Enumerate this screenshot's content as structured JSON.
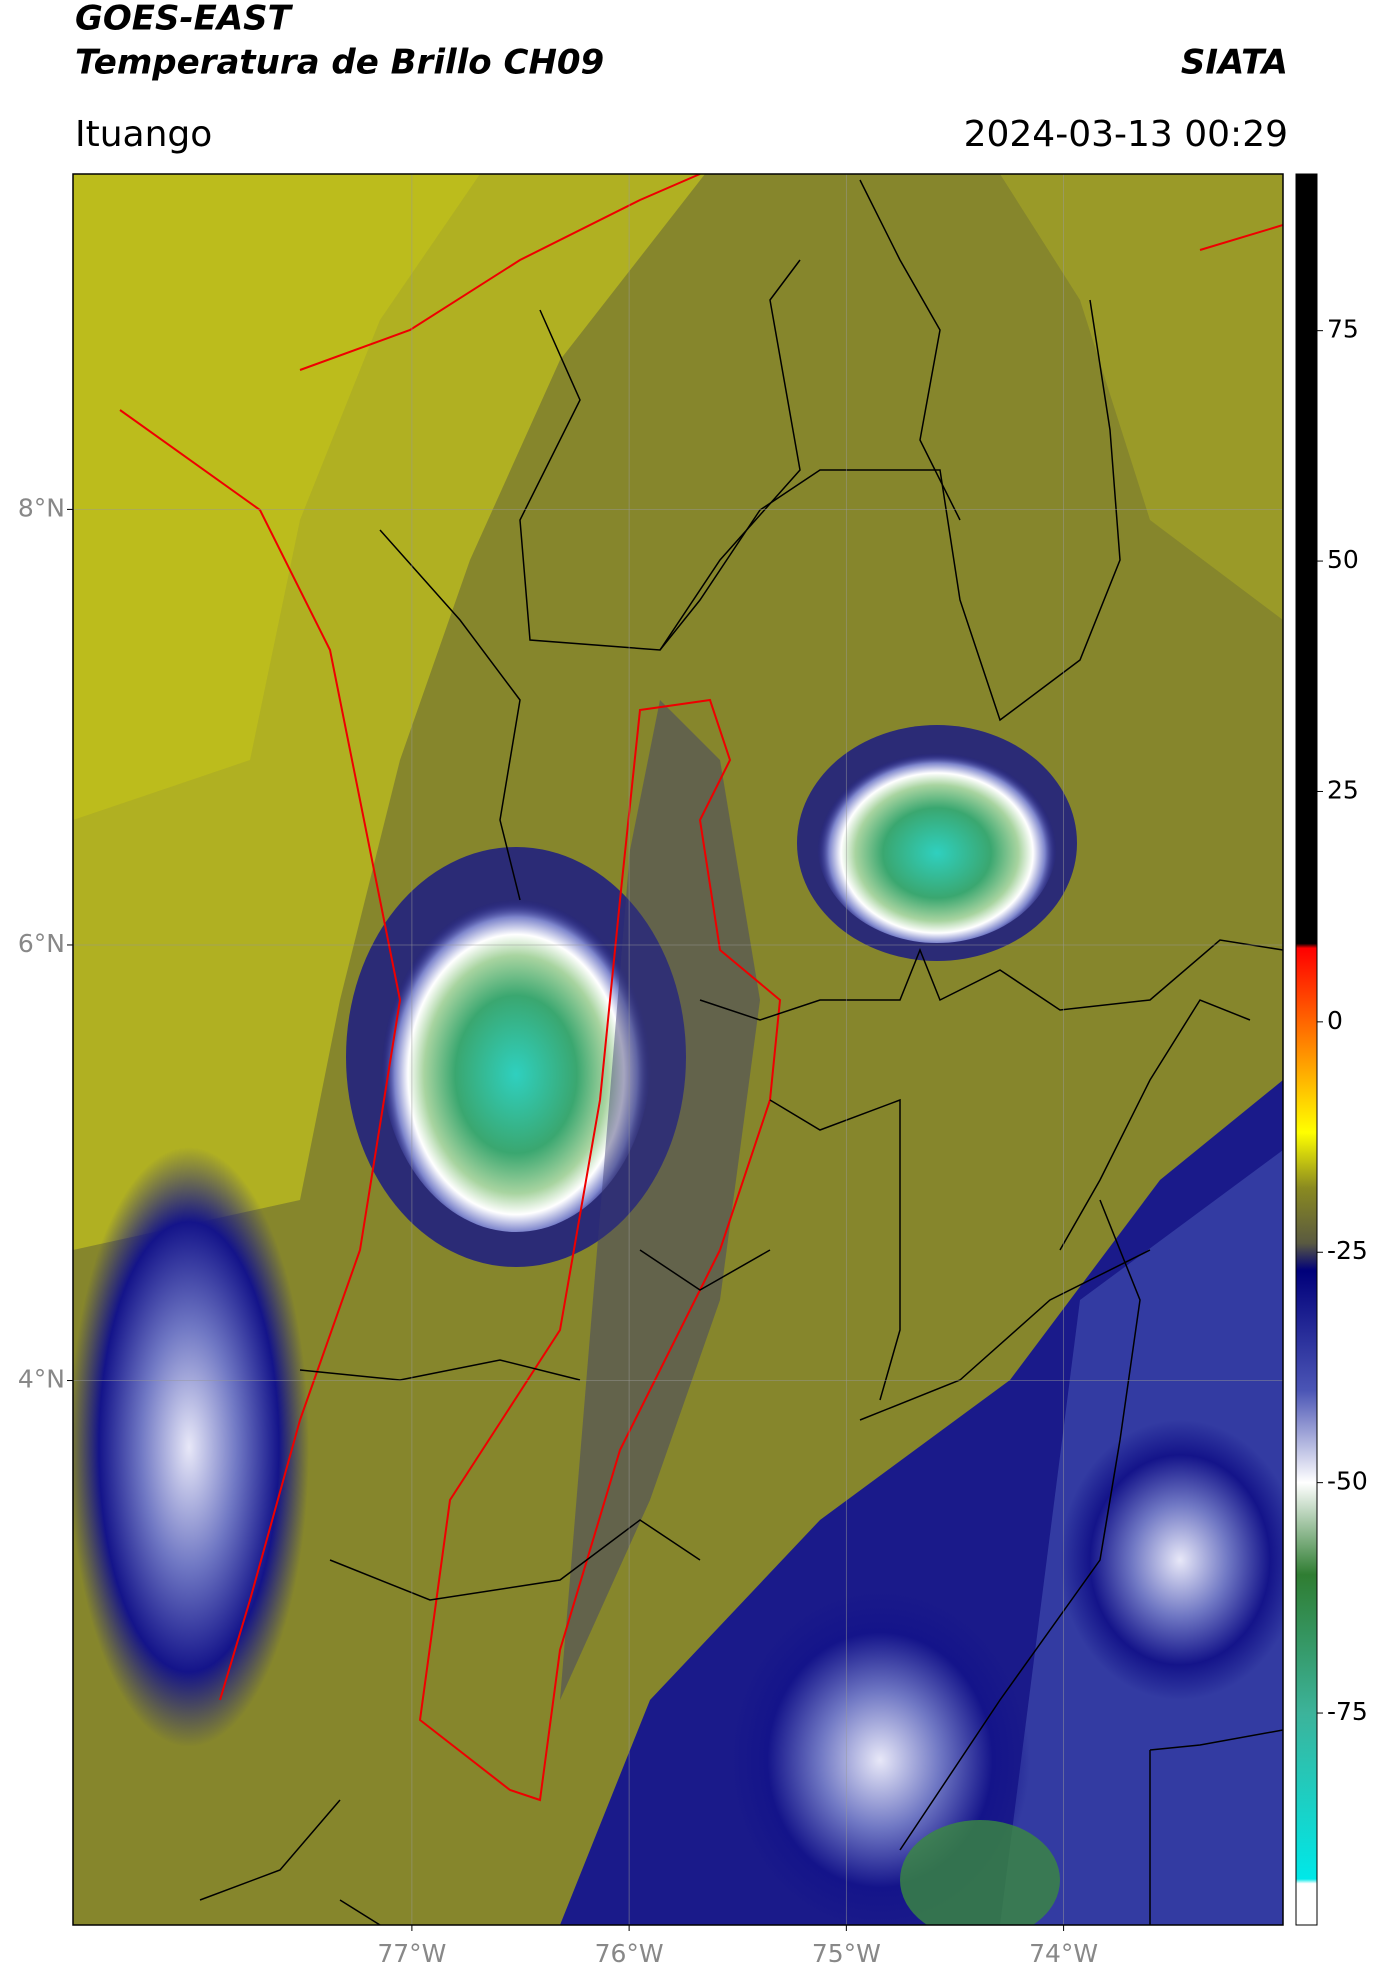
{
  "header": {
    "title": "GOES-EAST",
    "subtitle": "Temperatura de Brillo CH09",
    "org": "SIATA",
    "location": "Ituango",
    "datetime": "2024-03-13 00:29"
  },
  "map": {
    "xlim": [
      -78.56,
      -72.99
    ],
    "ylim": [
      1.5,
      9.54
    ],
    "grid": true,
    "xticks": [
      {
        "value": -77,
        "label": "77°W"
      },
      {
        "value": -76,
        "label": "76°W"
      },
      {
        "value": -75,
        "label": "75°W"
      },
      {
        "value": -74,
        "label": "74°W"
      }
    ],
    "yticks": [
      {
        "value": 8,
        "label": "8°N"
      },
      {
        "value": 6,
        "label": "6°N"
      },
      {
        "value": 4,
        "label": "4°N"
      }
    ]
  },
  "colorbar": {
    "lim": [
      -98,
      92
    ],
    "ticks": [
      75,
      50,
      25,
      0,
      -25,
      -50,
      -75
    ],
    "colors": [
      [
        92,
        "#000000"
      ],
      [
        8.5,
        "#000000"
      ],
      [
        8,
        "#ff0000"
      ],
      [
        -3,
        "#ff8c00"
      ],
      [
        -12,
        "#ffff00"
      ],
      [
        -18,
        "#8a8a20"
      ],
      [
        -24,
        "#5a5a40"
      ],
      [
        -27,
        "#00007a"
      ],
      [
        -40,
        "#4b55b5"
      ],
      [
        -50,
        "#ffffff"
      ],
      [
        -60,
        "#2f7d32"
      ],
      [
        -75,
        "#3cb39a"
      ],
      [
        -93,
        "#00e8e8"
      ],
      [
        -93.5,
        "#ffffff"
      ],
      [
        -98,
        "#ffffff"
      ]
    ]
  }
}
